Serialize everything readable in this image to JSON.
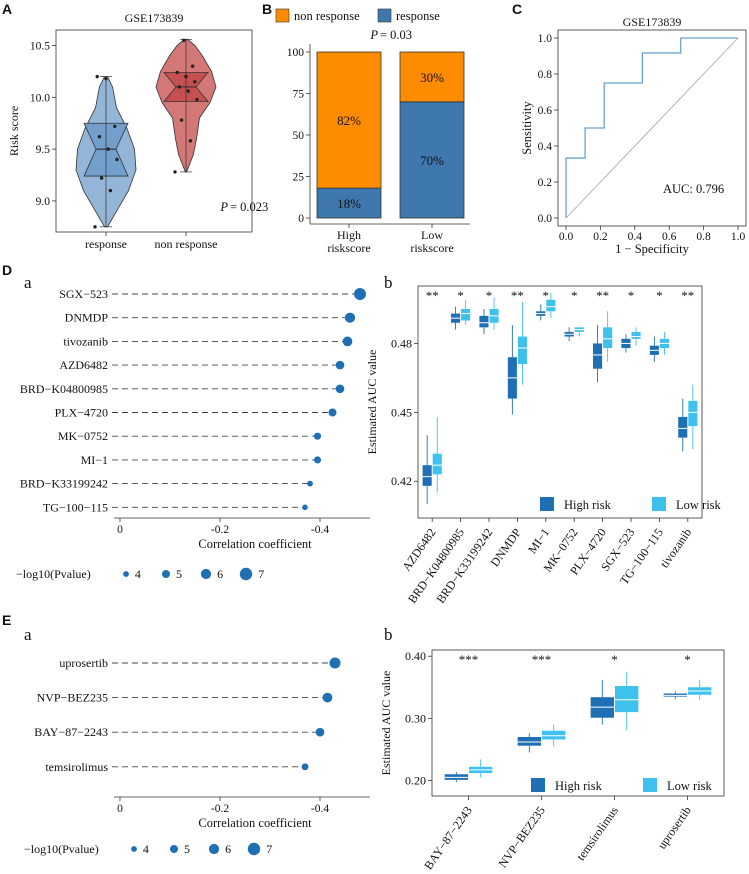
{
  "colors": {
    "high_risk": "#1f6fb5",
    "low_risk": "#3ec1ec",
    "violin_response": "#6f9ccb",
    "violin_nonresponse": "#c44a4a",
    "bar_nonresponse": "#ff8c00",
    "bar_response": "#3f78ad",
    "dot": "#1f6fb5",
    "roc": "#6aa3cf"
  },
  "panel_letters": {
    "A": "A",
    "B": "B",
    "C": "C",
    "D": "D",
    "E": "E",
    "Da": "a",
    "Db": "b",
    "Ea": "a",
    "Eb": "b"
  },
  "chart_data": [
    {
      "id": "A",
      "type": "violin",
      "title": "GSE173839",
      "ylabel": "Risk score",
      "ylim": [
        8.7,
        10.65
      ],
      "yticks": [
        9.0,
        9.5,
        10.0,
        10.5
      ],
      "yticklabels": [
        "9.0",
        "9.5",
        "10.0",
        "10.5"
      ],
      "categories": [
        "response",
        "non response"
      ],
      "annotation": "P = 0.023",
      "p_prefix": "P",
      "p_value": "= 0.023",
      "groups": [
        {
          "name": "response",
          "median": 9.5,
          "q1": 9.24,
          "q3": 9.75,
          "min": 8.75,
          "max": 10.2,
          "points": [
            8.75,
            9.1,
            9.22,
            9.4,
            9.5,
            9.62,
            9.72,
            10.18,
            10.2
          ]
        },
        {
          "name": "non response",
          "median": 10.1,
          "q1": 9.96,
          "q3": 10.24,
          "min": 9.28,
          "max": 10.56,
          "points": [
            9.28,
            9.58,
            9.78,
            9.98,
            10.06,
            10.1,
            10.15,
            10.2,
            10.24,
            10.3,
            10.55
          ]
        }
      ]
    },
    {
      "id": "B",
      "type": "bar",
      "stacked": true,
      "categories": [
        "High riskscore",
        "Low riskscore"
      ],
      "category_lines": [
        [
          "High",
          "riskscore"
        ],
        [
          "Low",
          "riskscore"
        ]
      ],
      "series": [
        {
          "name": "response",
          "values": [
            18,
            70
          ],
          "labels": [
            "18%",
            "70%"
          ]
        },
        {
          "name": "non response",
          "values": [
            82,
            30
          ],
          "labels": [
            "82%",
            "30%"
          ]
        }
      ],
      "legend": [
        "non response",
        "response"
      ],
      "legend_position": "top",
      "annotation": "P = 0.03",
      "p_prefix": "P",
      "p_value": "= 0.03",
      "ylim": [
        0,
        100
      ],
      "yticks": [
        0,
        25,
        50,
        75,
        100
      ],
      "yticklabels": [
        "0",
        "25",
        "50",
        "75",
        "100"
      ]
    },
    {
      "id": "C",
      "type": "line",
      "title": "GSE173839",
      "xlabel": "1 − Specificity",
      "ylabel": "Sensitivity",
      "xlim": [
        0,
        1
      ],
      "ylim": [
        0,
        1
      ],
      "ticks": [
        0.0,
        0.2,
        0.4,
        0.6,
        0.8,
        1.0
      ],
      "ticklabels": [
        "0.0",
        "0.2",
        "0.4",
        "0.6",
        "0.8",
        "1.0"
      ],
      "annotation": "AUC: 0.796",
      "roc_x": [
        0,
        0,
        0.111,
        0.111,
        0.222,
        0.222,
        0.444,
        0.444,
        0.667,
        0.667,
        1.0
      ],
      "roc_y": [
        0,
        0.333,
        0.333,
        0.5,
        0.5,
        0.75,
        0.75,
        0.917,
        0.917,
        1.0,
        1.0
      ]
    },
    {
      "id": "Da",
      "type": "scatter",
      "subtype": "lollipop",
      "xlabel": "Correlation coefficient",
      "xlim": [
        0,
        -0.5
      ],
      "xticks": [
        0,
        -0.2,
        -0.4
      ],
      "xticklabels": [
        "0",
        "-0.2",
        "-0.4"
      ],
      "categories": [
        "SGX−523",
        "DNMDP",
        "tivozanib",
        "AZD6482",
        "BRD−K04800985",
        "PLX−4720",
        "MK−0752",
        "MI−1",
        "BRD−K33199242",
        "TG−100−115"
      ],
      "values": [
        -0.48,
        -0.46,
        -0.455,
        -0.44,
        -0.44,
        -0.425,
        -0.395,
        -0.395,
        -0.38,
        -0.37
      ],
      "neg_log10_p": [
        6.8,
        6.0,
        5.8,
        5.3,
        5.3,
        5.0,
        4.6,
        4.6,
        4.0,
        3.9
      ],
      "size_legend_title": "−log10(Pvalue)",
      "size_legend": [
        4,
        5,
        6,
        7
      ]
    },
    {
      "id": "Db",
      "type": "box",
      "ylabel": "Estimated AUC value",
      "ylim": [
        0.404,
        0.505
      ],
      "yticks": [
        0.42,
        0.45,
        0.48
      ],
      "yticklabels": [
        "0.42",
        "0.45",
        "0.48"
      ],
      "categories": [
        "AZD6482",
        "BRD−K04800985",
        "BRD−K33199242",
        "DNMDP",
        "MI−1",
        "MK−0752",
        "PLX−4720",
        "SGX−523",
        "TG−100−115",
        "tivozanib"
      ],
      "significance": [
        "**",
        "*",
        "*",
        "**",
        "*",
        "*",
        "**",
        "*",
        "*",
        "**"
      ],
      "legend": [
        "High risk",
        "Low risk"
      ],
      "legend_position": "bottom-right",
      "series": [
        {
          "name": "High risk",
          "boxes": [
            [
              0.41,
              0.418,
              0.422,
              0.427,
              0.44
            ],
            [
              0.486,
              0.489,
              0.491,
              0.493,
              0.496
            ],
            [
              0.484,
              0.487,
              0.489,
              0.492,
              0.495
            ],
            [
              0.449,
              0.456,
              0.465,
              0.474,
              0.488
            ],
            [
              0.49,
              0.492,
              0.493,
              0.494,
              0.497
            ],
            [
              0.481,
              0.483,
              0.484,
              0.485,
              0.487
            ],
            [
              0.463,
              0.469,
              0.475,
              0.48,
              0.488
            ],
            [
              0.476,
              0.478,
              0.48,
              0.482,
              0.484
            ],
            [
              0.472,
              0.475,
              0.477,
              0.479,
              0.483
            ],
            [
              0.433,
              0.439,
              0.443,
              0.448,
              0.456
            ]
          ]
        },
        {
          "name": "Low risk",
          "boxes": [
            [
              0.415,
              0.423,
              0.427,
              0.432,
              0.448
            ],
            [
              0.488,
              0.49,
              0.493,
              0.495,
              0.499
            ],
            [
              0.486,
              0.489,
              0.492,
              0.495,
              0.5
            ],
            [
              0.462,
              0.471,
              0.478,
              0.483,
              0.498
            ],
            [
              0.491,
              0.494,
              0.496,
              0.499,
              0.502
            ],
            [
              0.483,
              0.485,
              0.486,
              0.487,
              0.487
            ],
            [
              0.472,
              0.478,
              0.482,
              0.487,
              0.494
            ],
            [
              0.479,
              0.482,
              0.483,
              0.485,
              0.487
            ],
            [
              0.475,
              0.478,
              0.48,
              0.482,
              0.485
            ],
            [
              0.434,
              0.444,
              0.45,
              0.455,
              0.462
            ]
          ]
        }
      ]
    },
    {
      "id": "Ea",
      "type": "scatter",
      "subtype": "lollipop",
      "xlabel": "Correlation coefficient",
      "xlim": [
        0,
        -0.5
      ],
      "xticks": [
        0,
        -0.2,
        -0.4
      ],
      "xticklabels": [
        "0",
        "-0.2",
        "-0.4"
      ],
      "categories": [
        "uprosertib",
        "NVP−BEZ235",
        "BAY−87−2243",
        "temsirolimus"
      ],
      "values": [
        -0.43,
        -0.415,
        -0.4,
        -0.37
      ],
      "neg_log10_p": [
        6.4,
        5.8,
        5.3,
        4.5
      ],
      "size_legend_title": "−log10(Pvalue)",
      "size_legend": [
        4,
        5,
        6,
        7
      ]
    },
    {
      "id": "Eb",
      "type": "box",
      "ylabel": "Estimated AUC value",
      "ylim": [
        0.175,
        0.41
      ],
      "yticks": [
        0.2,
        0.3,
        0.4
      ],
      "yticklabels": [
        "0.20",
        "0.30",
        "0.40"
      ],
      "categories": [
        "BAY−87−2243",
        "NVP−BEZ235",
        "temsirolimus",
        "uprosertib"
      ],
      "significance": [
        "***",
        "***",
        "*",
        "*"
      ],
      "legend": [
        "High risk",
        "Low risk"
      ],
      "legend_position": "bottom-right",
      "series": [
        {
          "name": "High risk",
          "boxes": [
            [
              0.197,
              0.201,
              0.205,
              0.21,
              0.214
            ],
            [
              0.245,
              0.256,
              0.262,
              0.27,
              0.276
            ],
            [
              0.29,
              0.301,
              0.318,
              0.334,
              0.362
            ],
            [
              0.331,
              0.335,
              0.337,
              0.34,
              0.343
            ]
          ]
        },
        {
          "name": "Low risk",
          "boxes": [
            [
              0.205,
              0.212,
              0.217,
              0.222,
              0.234
            ],
            [
              0.255,
              0.266,
              0.272,
              0.28,
              0.29
            ],
            [
              0.281,
              0.31,
              0.33,
              0.352,
              0.375
            ],
            [
              0.33,
              0.338,
              0.344,
              0.35,
              0.362
            ]
          ]
        }
      ]
    }
  ]
}
